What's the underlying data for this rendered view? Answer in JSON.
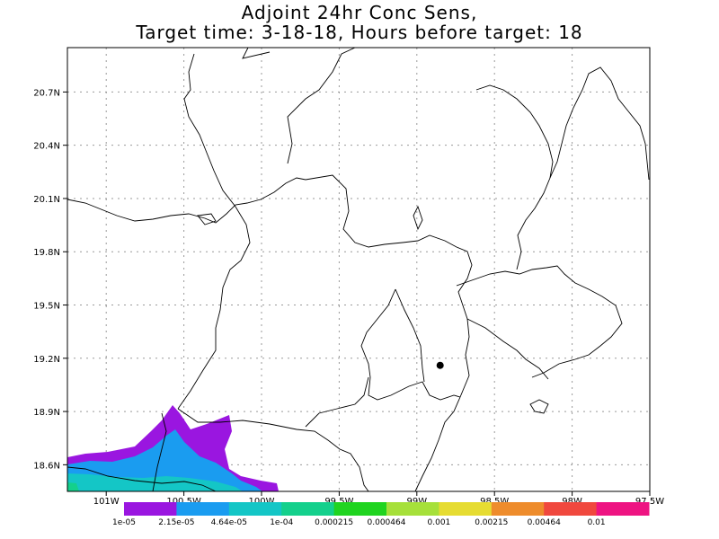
{
  "title": {
    "line1": "Adjoint 24hr Conc Sens,",
    "line2": "Target time: 3-18-18, Hours before target: 18"
  },
  "axes": {
    "lat_ticks": [
      "20.7N",
      "20.4N",
      "20.1N",
      "19.8N",
      "19.5N",
      "19.2N",
      "18.9N",
      "18.6N"
    ],
    "lat_values": [
      20.7,
      20.4,
      20.1,
      19.8,
      19.5,
      19.2,
      18.9,
      18.6
    ],
    "lon_ticks": [
      "101W",
      "100.5W",
      "100W",
      "99.5W",
      "99W",
      "98.5W",
      "98W",
      "97.5W"
    ],
    "lon_values": [
      -101,
      -100.5,
      -100,
      -99.5,
      -99,
      -98.5,
      -98,
      -97.5
    ],
    "lat_range": [
      18.45,
      20.95
    ],
    "lon_range": [
      -101.25,
      -97.5
    ],
    "grid": true
  },
  "target_point": {
    "lat": 19.16,
    "lon": -98.85,
    "color": "#000000"
  },
  "colorbar": {
    "labels": [
      "1e-05",
      "2.15e-05",
      "4.64e-05",
      "1e-04",
      "0.000215",
      "0.000464",
      "0.001",
      "0.00215",
      "0.00464",
      "0.01"
    ],
    "colors": [
      "#9a16e0",
      "#1a9cf0",
      "#14c6c6",
      "#14d08c",
      "#20d420",
      "#a6e03a",
      "#e6dc32",
      "#ee8c2c",
      "#f0483e",
      "#ee1482"
    ]
  },
  "colors": {
    "border_lines": "#000000",
    "grid": "#999999"
  }
}
